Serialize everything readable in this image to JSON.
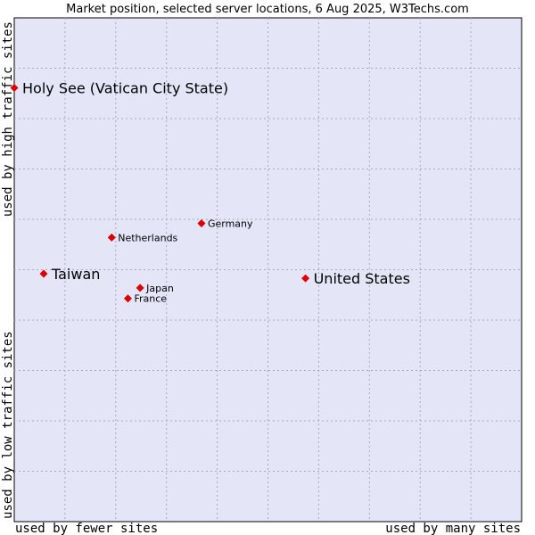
{
  "chart_data": {
    "type": "scatter",
    "title": "Market position, selected server locations, 6 Aug 2025, W3Techs.com",
    "xlabel_left": "used by fewer sites",
    "xlabel_right": "used by many sites",
    "ylabel_bottom": "used by low traffic sites",
    "ylabel_top": "used by high traffic sites",
    "xlim": [
      0,
      100
    ],
    "ylim": [
      0,
      100
    ],
    "grid": true,
    "colors": {
      "background": "#e4e6f8",
      "point": "#e00000",
      "grid": "#a8a8c0"
    },
    "points": [
      {
        "label": "Holy See (Vatican City State)",
        "x": 0.0,
        "y": 86.1,
        "size": "large",
        "anchor": "start"
      },
      {
        "label": "Germany",
        "x": 36.9,
        "y": 59.2,
        "size": "small",
        "anchor": "start"
      },
      {
        "label": "Netherlands",
        "x": 19.2,
        "y": 56.4,
        "size": "small",
        "anchor": "start"
      },
      {
        "label": "Taiwan",
        "x": 5.8,
        "y": 49.2,
        "size": "large",
        "anchor": "start"
      },
      {
        "label": "United States",
        "x": 57.4,
        "y": 48.3,
        "size": "large",
        "anchor": "start"
      },
      {
        "label": "Japan",
        "x": 24.8,
        "y": 46.4,
        "size": "small",
        "anchor": "start"
      },
      {
        "label": "France",
        "x": 22.4,
        "y": 44.3,
        "size": "small",
        "anchor": "start"
      }
    ]
  }
}
